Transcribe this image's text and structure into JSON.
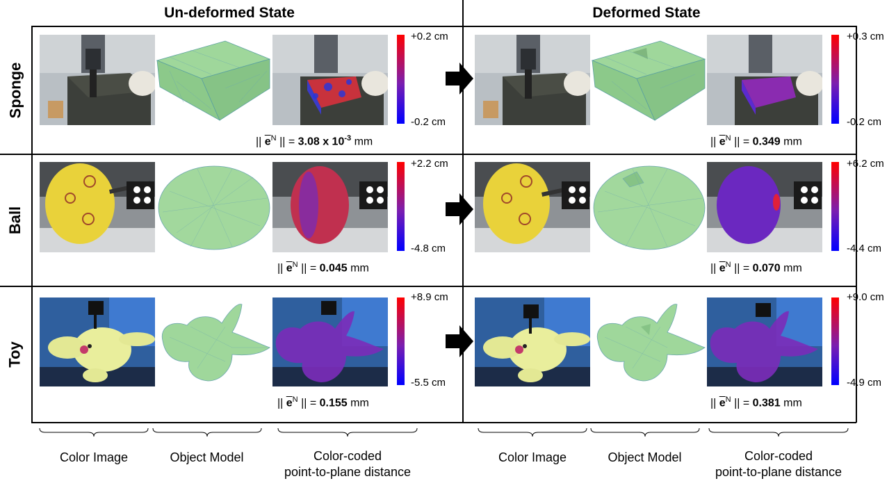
{
  "headers": {
    "left": "Un-deformed State",
    "right": "Deformed State"
  },
  "rows": [
    {
      "label": "Sponge",
      "undeformed": {
        "cmax": "+0.2 cm",
        "cmin": "-0.2 cm",
        "metric_prefix": "|| ",
        "metric_e": "e",
        "metric_sup": "N",
        "metric_mid": " || = ",
        "metric_value": "3.08 x 10",
        "metric_exp": "-3",
        "metric_unit": " mm"
      },
      "deformed": {
        "cmax": "+0.3 cm",
        "cmin": "-0.2 cm",
        "metric_prefix": "|| ",
        "metric_e": "e",
        "metric_sup": "N",
        "metric_mid": " || = ",
        "metric_value": "0.349",
        "metric_unit": " mm"
      }
    },
    {
      "label": "Ball",
      "undeformed": {
        "cmax": "+2.2 cm",
        "cmin": "-4.8 cm",
        "metric_prefix": "|| ",
        "metric_e": "e",
        "metric_sup": "N",
        "metric_mid": " || = ",
        "metric_value": "0.045",
        "metric_unit": " mm"
      },
      "deformed": {
        "cmax": "+6.2 cm",
        "cmin": "-4.4 cm",
        "metric_prefix": "|| ",
        "metric_e": "e",
        "metric_sup": "N",
        "metric_mid": " || = ",
        "metric_value": "0.070",
        "metric_unit": " mm"
      }
    },
    {
      "label": "Toy",
      "undeformed": {
        "cmax": "+8.9 cm",
        "cmin": "-5.5 cm",
        "metric_prefix": "|| ",
        "metric_e": "e",
        "metric_sup": "N",
        "metric_mid": " || = ",
        "metric_value": "0.155",
        "metric_unit": " mm"
      },
      "deformed": {
        "cmax": "+9.0 cm",
        "cmin": "-4.9 cm",
        "metric_prefix": "|| ",
        "metric_e": "e",
        "metric_sup": "N",
        "metric_mid": " || = ",
        "metric_value": "0.381",
        "metric_unit": " mm"
      }
    }
  ],
  "captions": {
    "color_image": "Color Image",
    "object_model": "Object Model",
    "distance_line1": "Color-coded",
    "distance_line2": "point-to-plane distance"
  },
  "colors": {
    "mesh_green": "#8fcf8f",
    "colorbar_top": "#ff0000",
    "colorbar_bottom": "#0000ff"
  }
}
